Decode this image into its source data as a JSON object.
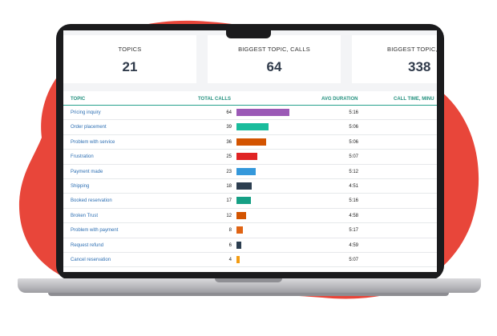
{
  "cards": [
    {
      "label": "TOPICS",
      "value": "21"
    },
    {
      "label": "BIGGEST TOPIC, CALLS",
      "value": "64"
    },
    {
      "label": "BIGGEST TOPIC, MI",
      "value": "338"
    }
  ],
  "table": {
    "headers": {
      "topic": "TOPIC",
      "total_calls": "TOTAL CALLS",
      "avg_duration": "AVG DURATION",
      "call_time": "CALL TIME, MINU"
    },
    "max_calls": 64,
    "rows": [
      {
        "topic": "Pricing inquiry",
        "calls": 64,
        "duration": "5:16",
        "color": "#9b59b6"
      },
      {
        "topic": "Order placement",
        "calls": 39,
        "duration": "5:06",
        "color": "#1abc9c"
      },
      {
        "topic": "Problem with service",
        "calls": 36,
        "duration": "5:06",
        "color": "#d35400"
      },
      {
        "topic": "Frustration",
        "calls": 25,
        "duration": "5:07",
        "color": "#e02424"
      },
      {
        "topic": "Payment made",
        "calls": 23,
        "duration": "5:12",
        "color": "#3498db"
      },
      {
        "topic": "Shipping",
        "calls": 18,
        "duration": "4:51",
        "color": "#2c3e50"
      },
      {
        "topic": "Booked reservation",
        "calls": 17,
        "duration": "5:16",
        "color": "#16a085"
      },
      {
        "topic": "Broken Trust",
        "calls": 12,
        "duration": "4:58",
        "color": "#d35400"
      },
      {
        "topic": "Problem with payment",
        "calls": 8,
        "duration": "5:17",
        "color": "#e06414"
      },
      {
        "topic": "Request refund",
        "calls": 6,
        "duration": "4:59",
        "color": "#2c3e50"
      },
      {
        "topic": "Cancel reservation",
        "calls": 4,
        "duration": "5:07",
        "color": "#f39c12"
      }
    ]
  },
  "colors": {
    "blob": "#e8463a",
    "accent": "#26a08c",
    "link": "#2d6fb3"
  }
}
